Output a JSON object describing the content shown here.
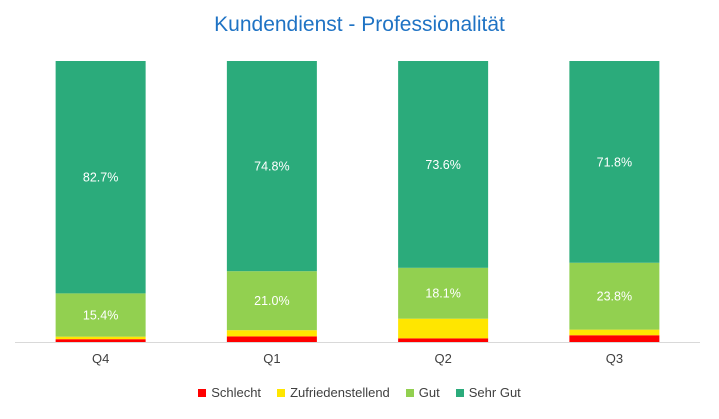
{
  "chart_data": {
    "type": "bar",
    "stacked": true,
    "normalized_percent": true,
    "title": "Kundendienst - Professionalität",
    "categories": [
      "Q4",
      "Q1",
      "Q2",
      "Q3"
    ],
    "series": [
      {
        "name": "Schlecht",
        "color": "#ff0000",
        "values": [
          1.0,
          2.0,
          1.3,
          2.4
        ]
      },
      {
        "name": "Zufriedenstellend",
        "color": "#ffe600",
        "values": [
          0.9,
          2.2,
          7.0,
          2.0
        ]
      },
      {
        "name": "Gut",
        "color": "#92d050",
        "values": [
          15.4,
          21.0,
          18.1,
          23.8
        ]
      },
      {
        "name": "Sehr Gut",
        "color": "#2bab7b",
        "values": [
          82.7,
          74.8,
          73.6,
          71.8
        ]
      }
    ],
    "data_labels": {
      "Gut": [
        "15.4%",
        "21.0%",
        "18.1%",
        "23.8%"
      ],
      "Sehr Gut": [
        "82.7%",
        "74.8%",
        "73.6%",
        "71.8%"
      ]
    },
    "ylim": [
      0,
      100
    ],
    "grid": false,
    "legend_position": "bottom"
  }
}
